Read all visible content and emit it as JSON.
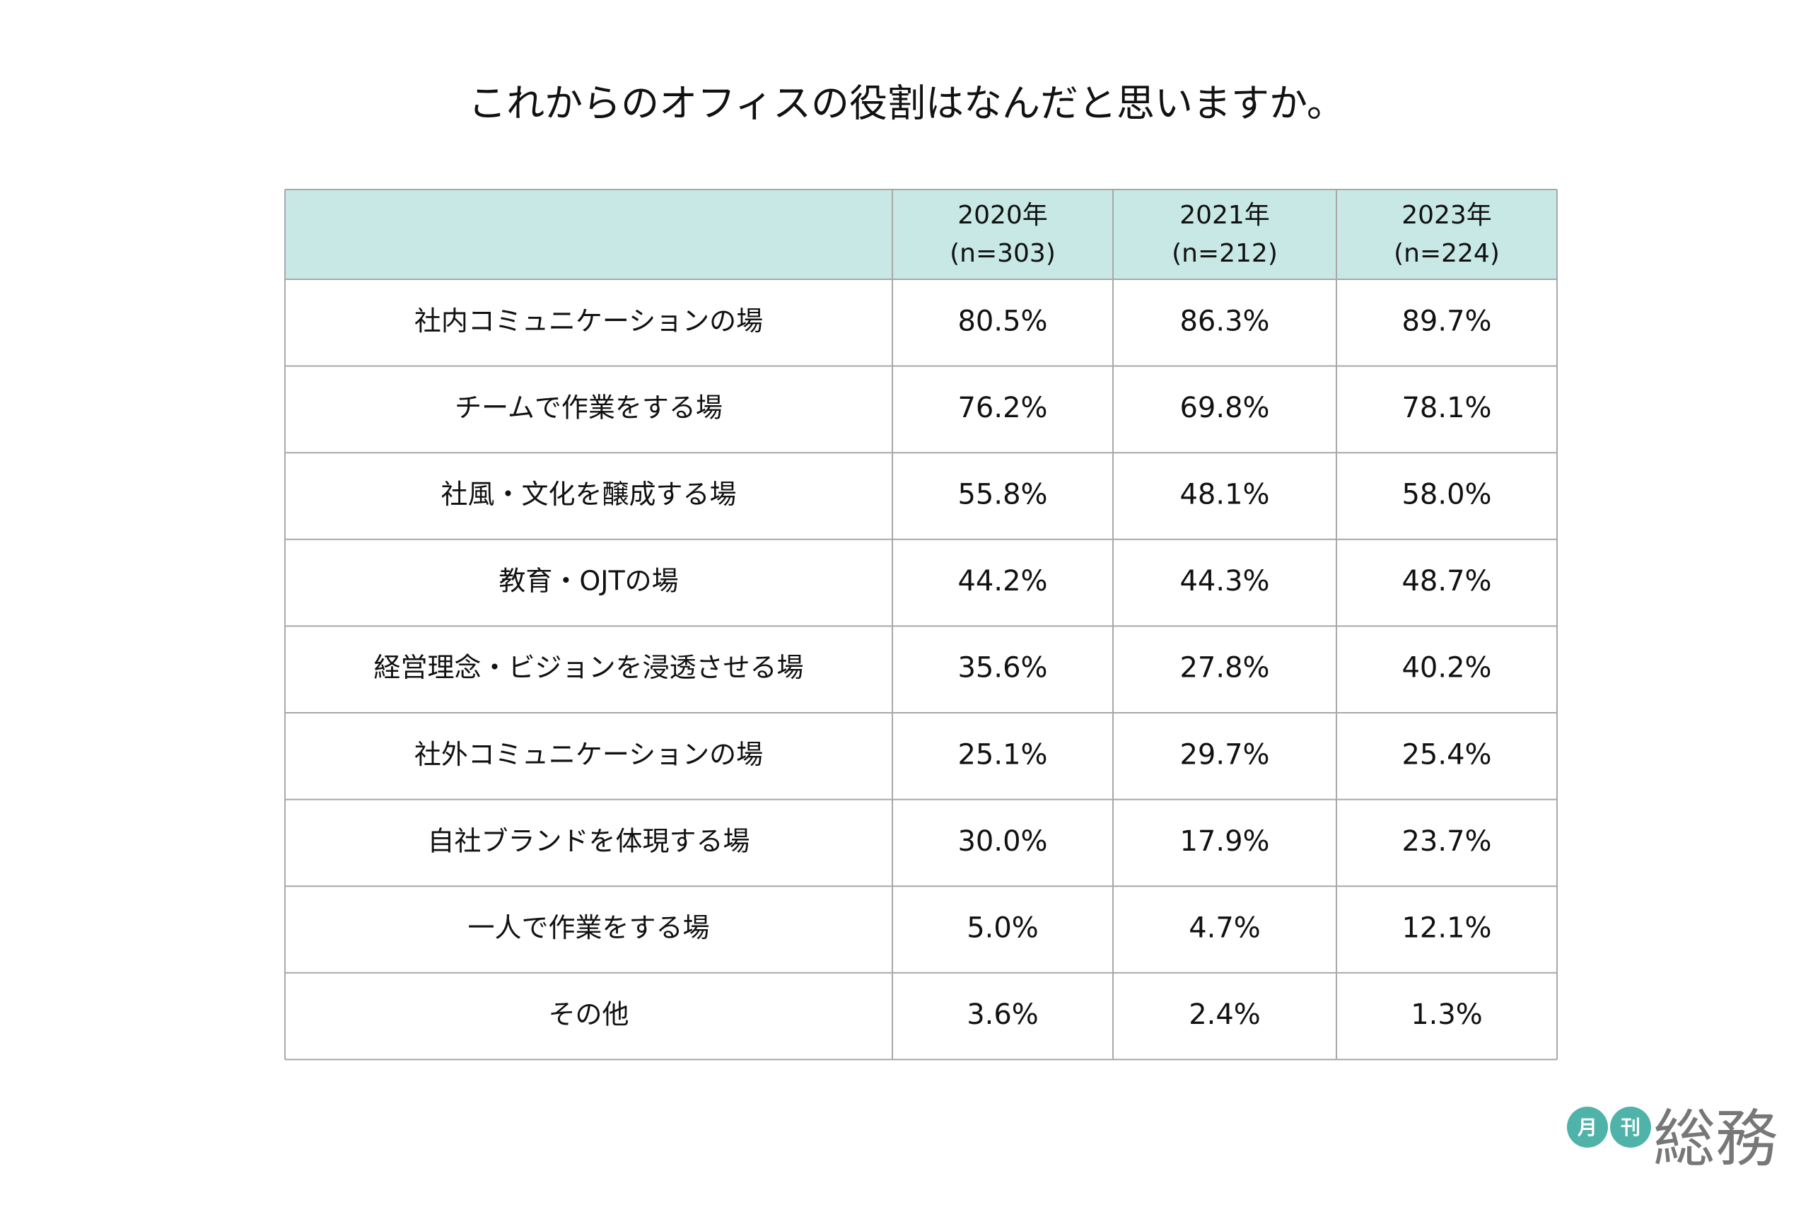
{
  "title": "これからのオフィスの役割はなんだと思いますか。",
  "table": {
    "columns": [
      {
        "year": "2020年",
        "n": "(n=303)"
      },
      {
        "year": "2021年",
        "n": "(n=212)"
      },
      {
        "year": "2023年",
        "n": "(n=224)"
      }
    ],
    "rows": [
      {
        "label": "社内コミュニケーションの場",
        "values": [
          "80.5%",
          "86.3%",
          "89.7%"
        ]
      },
      {
        "label": "チームで作業をする場",
        "values": [
          "76.2%",
          "69.8%",
          "78.1%"
        ]
      },
      {
        "label": "社風・文化を醸成する場",
        "values": [
          "55.8%",
          "48.1%",
          "58.0%"
        ]
      },
      {
        "label": "教育・OJTの場",
        "values": [
          "44.2%",
          "44.3%",
          "48.7%"
        ]
      },
      {
        "label": "経営理念・ビジョンを浸透させる場",
        "values": [
          "35.6%",
          "27.8%",
          "40.2%"
        ]
      },
      {
        "label": "社外コミュニケーションの場",
        "values": [
          "25.1%",
          "29.7%",
          "25.4%"
        ]
      },
      {
        "label": "自社ブランドを体現する場",
        "values": [
          "30.0%",
          "17.9%",
          "23.7%"
        ]
      },
      {
        "label": "一人で作業をする場",
        "values": [
          "5.0%",
          "4.7%",
          "12.1%"
        ]
      },
      {
        "label": "その他",
        "values": [
          "3.6%",
          "2.4%",
          "1.3%"
        ]
      }
    ]
  },
  "logo": {
    "mark1": "月",
    "mark2": "刊",
    "name": "総務"
  }
}
